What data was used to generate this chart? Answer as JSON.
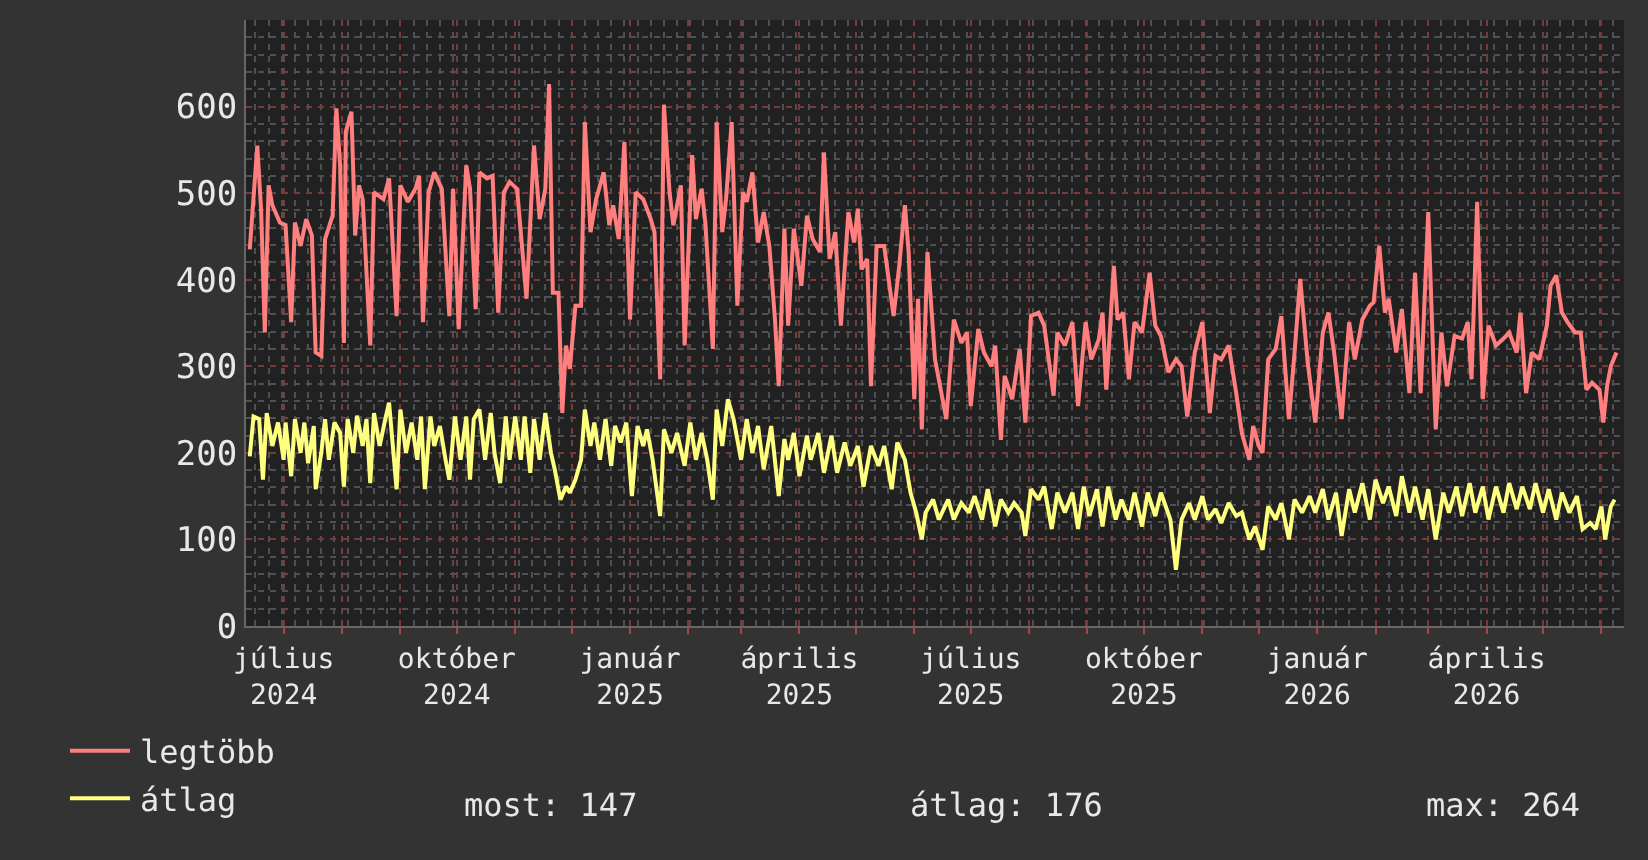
{
  "chart_data": {
    "type": "line",
    "xlim": [
      "2024-06-11",
      "2026-06-13"
    ],
    "xticks": [
      {
        "value": "2024-07-01",
        "label": "július 2024"
      },
      {
        "value": "2024-08-01",
        "label": null
      },
      {
        "value": "2024-09-01",
        "label": null
      },
      {
        "value": "2024-10-01",
        "label": "október 2024"
      },
      {
        "value": "2024-11-01",
        "label": null
      },
      {
        "value": "2024-12-01",
        "label": null
      },
      {
        "value": "2025-01-01",
        "label": "január 2025"
      },
      {
        "value": "2025-02-01",
        "label": null
      },
      {
        "value": "2025-03-01",
        "label": null
      },
      {
        "value": "2025-04-01",
        "label": "április 2025"
      },
      {
        "value": "2025-05-01",
        "label": null
      },
      {
        "value": "2025-06-01",
        "label": null
      },
      {
        "value": "2025-07-01",
        "label": "július 2025"
      },
      {
        "value": "2025-08-01",
        "label": null
      },
      {
        "value": "2025-09-01",
        "label": null
      },
      {
        "value": "2025-10-01",
        "label": "október 2025"
      },
      {
        "value": "2025-11-01",
        "label": null
      },
      {
        "value": "2025-12-01",
        "label": null
      },
      {
        "value": "2026-01-01",
        "label": "január 2026"
      },
      {
        "value": "2026-02-01",
        "label": null
      },
      {
        "value": "2026-03-01",
        "label": null
      },
      {
        "value": "2026-04-01",
        "label": "április 2026"
      },
      {
        "value": "2026-05-01",
        "label": null
      },
      {
        "value": "2026-06-01",
        "label": null
      }
    ],
    "ylim": [
      0,
      700
    ],
    "yticks": [
      0,
      100,
      200,
      300,
      400,
      500,
      600
    ],
    "grid": true,
    "legend": "bottom left",
    "annotations": [
      "most: 147",
      "átlag: 176",
      "max: 264"
    ],
    "series": [
      {
        "name": "legtöbb",
        "color": "#ff7f7f",
        "x": [
          "2024-06-13",
          "2024-06-17",
          "2024-06-19",
          "2024-06-21",
          "2024-06-23",
          "2024-06-25",
          "2024-06-29",
          "2024-07-02",
          "2024-07-05",
          "2024-07-07",
          "2024-07-10",
          "2024-07-13",
          "2024-07-16",
          "2024-07-18",
          "2024-07-21",
          "2024-07-23",
          "2024-07-27",
          "2024-07-29",
          "2024-07-31",
          "2024-08-02",
          "2024-08-03",
          "2024-08-06",
          "2024-08-08",
          "2024-08-10",
          "2024-08-12",
          "2024-08-16",
          "2024-08-18",
          "2024-08-23",
          "2024-08-26",
          "2024-08-30",
          "2024-09-01",
          "2024-09-05",
          "2024-09-09",
          "2024-09-11",
          "2024-09-13",
          "2024-09-16",
          "2024-09-19",
          "2024-09-23",
          "2024-09-27",
          "2024-09-29",
          "2024-10-02",
          "2024-10-06",
          "2024-10-08",
          "2024-10-11",
          "2024-10-13",
          "2024-10-17",
          "2024-10-20",
          "2024-10-23",
          "2024-10-26",
          "2024-10-29",
          "2024-11-02",
          "2024-11-07",
          "2024-11-11",
          "2024-11-14",
          "2024-11-17",
          "2024-11-19",
          "2024-11-21",
          "2024-11-24",
          "2024-11-26",
          "2024-11-28",
          "2024-11-30",
          "2024-12-03",
          "2024-12-06",
          "2024-12-08",
          "2024-12-11",
          "2024-12-14",
          "2024-12-18",
          "2024-12-21",
          "2024-12-23",
          "2024-12-26",
          "2024-12-29",
          "2025-01-01",
          "2025-01-04",
          "2025-01-08",
          "2025-01-12",
          "2025-01-14",
          "2025-01-17",
          "2025-01-19",
          "2025-01-22",
          "2025-01-24",
          "2025-01-28",
          "2025-01-30",
          "2025-02-03",
          "2025-02-05",
          "2025-02-08",
          "2025-02-10",
          "2025-02-14",
          "2025-02-16",
          "2025-02-19",
          "2025-02-21",
          "2025-02-24",
          "2025-02-27",
          "2025-03-02",
          "2025-03-04",
          "2025-03-07",
          "2025-03-10",
          "2025-03-13",
          "2025-03-16",
          "2025-03-19",
          "2025-03-21",
          "2025-03-24",
          "2025-03-26",
          "2025-03-29",
          "2025-04-02",
          "2025-04-05",
          "2025-04-08",
          "2025-04-12",
          "2025-04-14",
          "2025-04-17",
          "2025-04-20",
          "2025-04-23",
          "2025-04-27",
          "2025-04-30",
          "2025-05-02",
          "2025-05-04",
          "2025-05-07",
          "2025-05-09",
          "2025-05-12",
          "2025-05-16",
          "2025-05-21",
          "2025-05-24",
          "2025-05-27",
          "2025-05-29",
          "2025-06-01",
          "2025-06-03",
          "2025-06-05",
          "2025-06-08",
          "2025-06-12",
          "2025-06-18",
          "2025-06-22",
          "2025-06-26",
          "2025-06-29",
          "2025-07-01",
          "2025-07-05",
          "2025-07-08",
          "2025-07-12",
          "2025-07-14",
          "2025-07-17",
          "2025-07-19",
          "2025-07-23",
          "2025-07-27",
          "2025-07-30",
          "2025-08-02",
          "2025-08-06",
          "2025-08-09",
          "2025-08-14",
          "2025-08-16",
          "2025-08-20",
          "2025-08-24",
          "2025-08-27",
          "2025-08-31",
          "2025-09-03",
          "2025-09-07",
          "2025-09-09",
          "2025-09-11",
          "2025-09-15",
          "2025-09-17",
          "2025-09-20",
          "2025-09-23",
          "2025-09-26",
          "2025-09-30",
          "2025-10-04",
          "2025-10-07",
          "2025-10-10",
          "2025-10-14",
          "2025-10-18",
          "2025-10-21",
          "2025-10-24",
          "2025-10-28",
          "2025-11-01",
          "2025-11-05",
          "2025-11-08",
          "2025-11-11",
          "2025-11-15",
          "2025-11-19",
          "2025-11-22",
          "2025-11-26",
          "2025-11-28",
          "2025-12-01",
          "2025-12-03",
          "2025-12-06",
          "2025-12-10",
          "2025-12-13",
          "2025-12-17",
          "2025-12-20",
          "2025-12-23",
          "2025-12-27",
          "2025-12-31",
          "2026-01-04",
          "2026-01-07",
          "2026-01-10",
          "2026-01-14",
          "2026-01-18",
          "2026-01-21",
          "2026-01-25",
          "2026-01-29",
          "2026-01-31",
          "2026-02-03",
          "2026-02-06",
          "2026-02-08",
          "2026-02-12",
          "2026-02-15",
          "2026-02-19",
          "2026-02-22",
          "2026-02-25",
          "2026-03-01",
          "2026-03-05",
          "2026-03-08",
          "2026-03-11",
          "2026-03-15",
          "2026-03-19",
          "2026-03-22",
          "2026-03-24",
          "2026-03-27",
          "2026-03-30",
          "2026-04-02",
          "2026-04-06",
          "2026-04-10",
          "2026-04-13",
          "2026-04-17",
          "2026-04-19",
          "2026-04-22",
          "2026-04-25",
          "2026-04-29",
          "2026-05-03",
          "2026-05-05",
          "2026-05-08",
          "2026-05-11",
          "2026-05-14",
          "2026-05-18",
          "2026-05-21",
          "2026-05-24",
          "2026-05-27",
          "2026-05-31",
          "2026-06-02",
          "2026-06-04",
          "2026-06-06",
          "2026-06-09"
        ],
        "values": [
          435,
          555,
          482,
          339,
          509,
          486,
          466,
          463,
          351,
          466,
          439,
          470,
          451,
          316,
          312,
          447,
          474,
          598,
          532,
          327,
          571,
          594,
          451,
          509,
          493,
          324,
          501,
          493,
          517,
          358,
          509,
          490,
          505,
          520,
          351,
          501,
          524,
          505,
          358,
          505,
          343,
          532,
          505,
          366,
          524,
          517,
          520,
          362,
          501,
          513,
          505,
          378,
          555,
          470,
          505,
          626,
          385,
          385,
          246,
          324,
          297,
          370,
          370,
          582,
          455,
          493,
          524,
          463,
          486,
          447,
          559,
          354,
          501,
          493,
          470,
          455,
          285,
          602,
          501,
          463,
          509,
          324,
          544,
          470,
          505,
          466,
          320,
          582,
          455,
          493,
          582,
          370,
          501,
          490,
          524,
          443,
          478,
          439,
          354,
          277,
          459,
          347,
          459,
          393,
          474,
          447,
          432,
          547,
          424,
          455,
          347,
          478,
          443,
          482,
          412,
          424,
          277,
          439,
          439,
          358,
          416,
          486,
          432,
          262,
          378,
          227,
          432,
          308,
          239,
          354,
          327,
          339,
          254,
          343,
          316,
          300,
          324,
          215,
          289,
          262,
          320,
          235,
          358,
          362,
          347,
          266,
          339,
          324,
          351,
          254,
          351,
          308,
          331,
          362,
          273,
          416,
          354,
          362,
          285,
          351,
          339,
          408,
          347,
          335,
          293,
          308,
          300,
          242,
          316,
          351,
          246,
          312,
          308,
          324,
          269,
          223,
          192,
          231,
          208,
          200,
          308,
          320,
          358,
          239,
          316,
          401,
          304,
          235,
          339,
          362,
          316,
          239,
          351,
          308,
          354,
          370,
          374,
          439,
          362,
          378,
          316,
          366,
          269,
          408,
          269,
          478,
          227,
          339,
          277,
          335,
          332,
          351,
          285,
          490,
          262,
          347,
          324,
          332,
          339,
          316,
          362,
          269,
          316,
          308,
          347,
          393,
          405,
          362,
          351,
          339,
          339,
          273,
          281,
          273,
          235,
          277,
          300,
          316
        ]
      },
      {
        "name": "átlag",
        "color": "#ffff7f",
        "x": [
          "2024-06-13",
          "2024-06-15",
          "2024-06-18",
          "2024-06-20",
          "2024-06-22",
          "2024-06-25",
          "2024-06-28",
          "2024-07-01",
          "2024-07-02",
          "2024-07-05",
          "2024-07-07",
          "2024-07-10",
          "2024-07-12",
          "2024-07-14",
          "2024-07-17",
          "2024-07-18",
          "2024-07-21",
          "2024-07-23",
          "2024-07-25",
          "2024-07-28",
          "2024-07-31",
          "2024-08-02",
          "2024-08-04",
          "2024-08-07",
          "2024-08-09",
          "2024-08-12",
          "2024-08-14",
          "2024-08-16",
          "2024-08-18",
          "2024-08-21",
          "2024-08-24",
          "2024-08-26",
          "2024-08-28",
          "2024-08-30",
          "2024-09-01",
          "2024-09-04",
          "2024-09-07",
          "2024-09-10",
          "2024-09-12",
          "2024-09-14",
          "2024-09-17",
          "2024-09-19",
          "2024-09-22",
          "2024-09-25",
          "2024-09-27",
          "2024-09-30",
          "2024-10-03",
          "2024-10-06",
          "2024-10-08",
          "2024-10-10",
          "2024-10-13",
          "2024-10-16",
          "2024-10-19",
          "2024-10-21",
          "2024-10-24",
          "2024-10-27",
          "2024-10-29",
          "2024-11-01",
          "2024-11-04",
          "2024-11-06",
          "2024-11-09",
          "2024-11-11",
          "2024-11-14",
          "2024-11-17",
          "2024-11-20",
          "2024-11-22",
          "2024-11-25",
          "2024-11-28",
          "2024-11-30",
          "2024-12-03",
          "2024-12-06",
          "2024-12-08",
          "2024-12-11",
          "2024-12-13",
          "2024-12-16",
          "2024-12-19",
          "2024-12-22",
          "2024-12-24",
          "2024-12-27",
          "2024-12-30",
          "2025-01-02",
          "2025-01-05",
          "2025-01-08",
          "2025-01-10",
          "2025-01-13",
          "2025-01-17",
          "2025-01-19",
          "2025-01-23",
          "2025-01-26",
          "2025-01-30",
          "2025-02-02",
          "2025-02-05",
          "2025-02-08",
          "2025-02-11",
          "2025-02-14",
          "2025-02-16",
          "2025-02-19",
          "2025-02-22",
          "2025-02-25",
          "2025-03-01",
          "2025-03-04",
          "2025-03-07",
          "2025-03-10",
          "2025-03-13",
          "2025-03-17",
          "2025-03-21",
          "2025-03-24",
          "2025-03-26",
          "2025-03-29",
          "2025-04-01",
          "2025-04-05",
          "2025-04-07",
          "2025-04-11",
          "2025-04-14",
          "2025-04-18",
          "2025-04-21",
          "2025-04-25",
          "2025-04-28",
          "2025-05-02",
          "2025-05-05",
          "2025-05-09",
          "2025-05-13",
          "2025-05-16",
          "2025-05-20",
          "2025-05-23",
          "2025-05-27",
          "2025-05-30",
          "2025-06-02",
          "2025-06-05",
          "2025-06-07",
          "2025-06-11",
          "2025-06-14",
          "2025-06-19",
          "2025-06-22",
          "2025-06-26",
          "2025-06-30",
          "2025-07-03",
          "2025-07-07",
          "2025-07-10",
          "2025-07-14",
          "2025-07-17",
          "2025-07-21",
          "2025-07-24",
          "2025-07-28",
          "2025-07-30",
          "2025-08-02",
          "2025-08-06",
          "2025-08-09",
          "2025-08-13",
          "2025-08-16",
          "2025-08-20",
          "2025-08-24",
          "2025-08-27",
          "2025-08-30",
          "2025-09-02",
          "2025-09-06",
          "2025-09-09",
          "2025-09-12",
          "2025-09-16",
          "2025-09-19",
          "2025-09-23",
          "2025-09-26",
          "2025-09-30",
          "2025-10-03",
          "2025-10-07",
          "2025-10-10",
          "2025-10-15",
          "2025-10-18",
          "2025-10-21",
          "2025-10-25",
          "2025-10-28",
          "2025-11-01",
          "2025-11-04",
          "2025-11-08",
          "2025-11-11",
          "2025-11-15",
          "2025-11-19",
          "2025-11-22",
          "2025-11-26",
          "2025-11-29",
          "2025-12-03",
          "2025-12-06",
          "2025-12-10",
          "2025-12-13",
          "2025-12-17",
          "2025-12-20",
          "2025-12-24",
          "2025-12-28",
          "2025-12-31",
          "2026-01-04",
          "2026-01-07",
          "2026-01-11",
          "2026-01-14",
          "2026-01-18",
          "2026-01-21",
          "2026-01-25",
          "2026-01-29",
          "2026-02-01",
          "2026-02-05",
          "2026-02-08",
          "2026-02-12",
          "2026-02-15",
          "2026-02-19",
          "2026-02-22",
          "2026-02-26",
          "2026-03-01",
          "2026-03-05",
          "2026-03-09",
          "2026-03-12",
          "2026-03-16",
          "2026-03-19",
          "2026-03-23",
          "2026-03-26",
          "2026-03-30",
          "2026-04-02",
          "2026-04-06",
          "2026-04-10",
          "2026-04-13",
          "2026-04-17",
          "2026-04-20",
          "2026-04-24",
          "2026-04-27",
          "2026-05-01",
          "2026-05-04",
          "2026-05-08",
          "2026-05-11",
          "2026-05-15",
          "2026-05-19",
          "2026-05-22",
          "2026-05-26",
          "2026-05-29",
          "2026-06-01",
          "2026-06-03",
          "2026-06-06",
          "2026-06-08"
        ],
        "values": [
          196,
          242,
          239,
          169,
          246,
          208,
          235,
          192,
          235,
          173,
          239,
          200,
          235,
          188,
          231,
          158,
          200,
          239,
          192,
          235,
          223,
          161,
          239,
          200,
          243,
          208,
          239,
          165,
          246,
          208,
          239,
          258,
          208,
          158,
          250,
          200,
          235,
          192,
          242,
          158,
          242,
          208,
          231,
          192,
          169,
          242,
          192,
          242,
          169,
          239,
          250,
          192,
          246,
          200,
          165,
          242,
          192,
          242,
          192,
          242,
          177,
          239,
          192,
          246,
          200,
          181,
          146,
          161,
          154,
          169,
          192,
          250,
          208,
          235,
          192,
          239,
          185,
          231,
          212,
          235,
          150,
          231,
          208,
          227,
          192,
          127,
          227,
          200,
          223,
          185,
          235,
          192,
          223,
          192,
          146,
          250,
          208,
          262,
          239,
          192,
          239,
          200,
          231,
          181,
          231,
          150,
          216,
          192,
          223,
          173,
          220,
          192,
          223,
          177,
          220,
          177,
          212,
          185,
          208,
          161,
          208,
          185,
          208,
          158,
          212,
          192,
          154,
          131,
          100,
          131,
          146,
          123,
          146,
          123,
          142,
          131,
          150,
          123,
          158,
          115,
          146,
          131,
          142,
          131,
          104,
          158,
          146,
          161,
          112,
          154,
          131,
          154,
          112,
          161,
          127,
          158,
          115,
          161,
          123,
          146,
          123,
          154,
          115,
          154,
          127,
          154,
          123,
          65,
          123,
          142,
          123,
          150,
          123,
          135,
          119,
          142,
          127,
          131,
          100,
          115,
          88,
          138,
          123,
          142,
          100,
          146,
          131,
          150,
          131,
          158,
          123,
          154,
          104,
          158,
          131,
          165,
          123,
          169,
          142,
          161,
          127,
          173,
          131,
          161,
          123,
          158,
          100,
          154,
          131,
          161,
          127,
          165,
          131,
          161,
          123,
          161,
          131,
          165,
          135,
          161,
          135,
          165,
          131,
          158,
          123,
          154,
          131,
          150,
          112,
          119,
          112,
          138,
          100,
          138,
          146
        ]
      }
    ]
  }
}
